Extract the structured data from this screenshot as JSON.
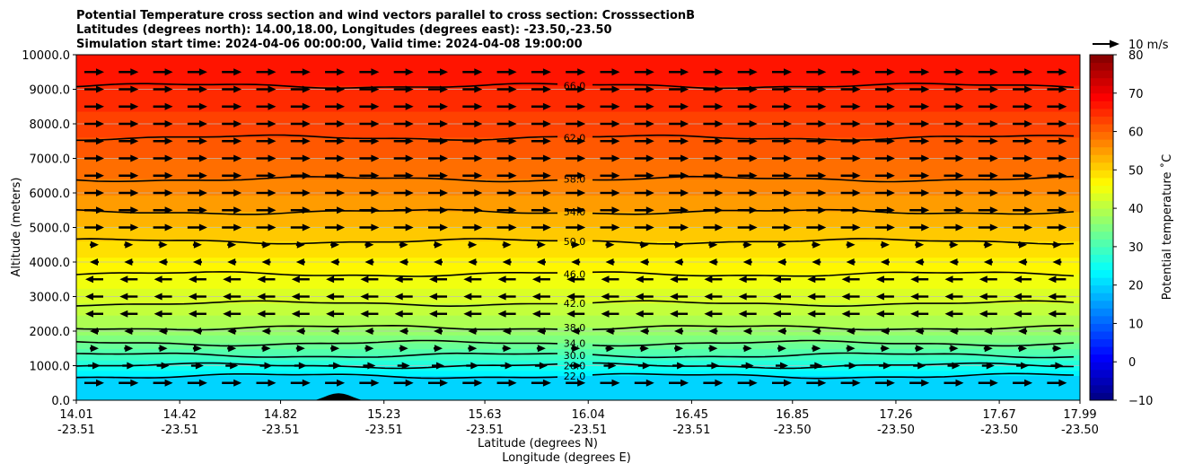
{
  "chart_data": {
    "type": "contour",
    "title_lines": [
      "Potential Temperature cross section and wind vectors parallel to cross section: CrosssectionB",
      "Latitudes (degrees north): 14.00,18.00, Longitudes (degrees east): -23.50,-23.50",
      "Simulation start time: 2024-04-06 00:00:00, Valid time: 2024-04-08 19:00:00"
    ],
    "ylabel": "Altitude (meters)",
    "xlabel_lat": "Latitude (degrees N)",
    "xlabel_lon": "Longitude (degrees E)",
    "ylim": [
      0,
      10000
    ],
    "xlim": [
      14.01,
      17.99
    ],
    "y_ticks": [
      0,
      1000,
      2000,
      3000,
      4000,
      5000,
      6000,
      7000,
      8000,
      9000,
      10000
    ],
    "y_tick_labels": [
      "0.0",
      "1000.0",
      "2000.0",
      "3000.0",
      "4000.0",
      "5000.0",
      "6000.0",
      "7000.0",
      "8000.0",
      "9000.0",
      "10000.0"
    ],
    "x_ticks": [
      {
        "lat": "14.01",
        "lon": "-23.51"
      },
      {
        "lat": "14.42",
        "lon": "-23.51"
      },
      {
        "lat": "14.82",
        "lon": "-23.51"
      },
      {
        "lat": "15.23",
        "lon": "-23.51"
      },
      {
        "lat": "15.63",
        "lon": "-23.51"
      },
      {
        "lat": "16.04",
        "lon": "-23.51"
      },
      {
        "lat": "16.45",
        "lon": "-23.51"
      },
      {
        "lat": "16.85",
        "lon": "-23.50"
      },
      {
        "lat": "17.26",
        "lon": "-23.50"
      },
      {
        "lat": "17.67",
        "lon": "-23.50"
      },
      {
        "lat": "17.99",
        "lon": "-23.50"
      }
    ],
    "contours": [
      {
        "label": "22.0",
        "altitude": 700
      },
      {
        "label": "26.0",
        "altitude": 1000
      },
      {
        "label": "30.0",
        "altitude": 1300
      },
      {
        "label": "34.0",
        "altitude": 1650
      },
      {
        "label": "38.0",
        "altitude": 2100
      },
      {
        "label": "42.0",
        "altitude": 2800
      },
      {
        "label": "46.0",
        "altitude": 3650
      },
      {
        "label": "50.0",
        "altitude": 4600
      },
      {
        "label": "54.0",
        "altitude": 5450
      },
      {
        "label": "58.0",
        "altitude": 6400
      },
      {
        "label": "62.0",
        "altitude": 7600
      },
      {
        "label": "66.0",
        "altitude": 9100
      }
    ],
    "terrain": {
      "center_lat": 15.05,
      "half_width_lat": 0.1,
      "peak_altitude": 200
    },
    "wind_key": {
      "label": "10 m/s"
    },
    "colorbar": {
      "label": "Potential temperature ˚C",
      "min": -10,
      "max": 80,
      "ticks": [
        -10,
        0,
        10,
        20,
        30,
        40,
        50,
        60,
        70,
        80
      ],
      "colormap": "jet"
    }
  }
}
